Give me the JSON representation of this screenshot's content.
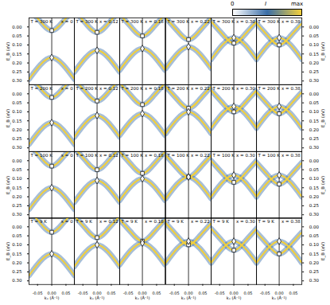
{
  "chart_data": {
    "type": "line",
    "xlabel": "kₓ (Å⁻¹)",
    "ylabel": "E_B (eV)",
    "xlim": [
      -0.08,
      0.08
    ],
    "xticks": [
      -0.05,
      {
        "value": 0,
        "label": "0.00"
      },
      0.05
    ],
    "ylim": [
      -0.05,
      0.32
    ],
    "yticks": [
      {
        "value": 0,
        "label": "0.00"
      },
      0.05,
      {
        "value": 0.1,
        "label": "0.10"
      },
      0.15,
      {
        "value": 0.2,
        "label": "0.20"
      },
      0.25,
      {
        "value": 0.3,
        "label": "0.30"
      }
    ],
    "color": "#f2cf3b",
    "vertical_line_k": 0,
    "colorbar": {
      "title": "I",
      "range_labels": [
        "0",
        "max"
      ],
      "colors": [
        "#ffffff",
        "#3a6ea8",
        "#f2cf3b"
      ]
    },
    "k": [
      -0.08,
      -0.04,
      0,
      0.04,
      0.08
    ],
    "panels": [
      [
        {
          "temperature_label": "T = 300 K",
          "composition_label": "x = 0",
          "bands": [
            [
              -0.1,
              -0.03,
              0.02,
              -0.03,
              -0.1
            ],
            [
              0.29,
              0.21,
              0.17,
              0.21,
              0.29
            ]
          ],
          "markers": [
            {
              "k": 0,
              "E": 0.02,
              "marker": "square"
            },
            {
              "k": 0,
              "E": 0.17,
              "marker": "diamond"
            }
          ]
        },
        {
          "temperature_label": "T = 300 K",
          "composition_label": "x = 0.12",
          "bands": [
            [
              -0.09,
              -0.02,
              0.03,
              -0.02,
              -0.09
            ],
            [
              0.25,
              0.17,
              0.13,
              0.17,
              0.25
            ]
          ],
          "markers": [
            {
              "k": 0,
              "E": 0.03,
              "marker": "square"
            },
            {
              "k": 0,
              "E": 0.13,
              "marker": "diamond"
            }
          ]
        },
        {
          "temperature_label": "T = 300 K",
          "composition_label": "x = 0.18",
          "bands": [
            [
              -0.07,
              0.0,
              0.05,
              0.0,
              -0.07
            ],
            [
              0.24,
              0.16,
              0.12,
              0.16,
              0.24
            ]
          ],
          "markers": [
            {
              "k": 0,
              "E": 0.05,
              "marker": "square"
            },
            {
              "k": 0,
              "E": 0.12,
              "marker": "diamond"
            }
          ]
        },
        {
          "temperature_label": "T = 300 K",
          "composition_label": "x = 0.22",
          "bands": [
            [
              -0.05,
              0.02,
              0.07,
              0.02,
              -0.05
            ],
            [
              0.23,
              0.15,
              0.11,
              0.15,
              0.23
            ]
          ],
          "markers": [
            {
              "k": 0,
              "E": 0.07,
              "marker": "square"
            },
            {
              "k": 0,
              "E": 0.11,
              "marker": "diamond"
            }
          ]
        },
        {
          "temperature_label": "T = 300 K",
          "composition_label": "x = 0.30",
          "bands": [
            [
              -0.03,
              0.04,
              0.09,
              0.04,
              -0.03
            ],
            [
              0.18,
              0.1,
              0.06,
              0.1,
              0.18
            ]
          ],
          "markers": [
            {
              "k": 0,
              "E": 0.09,
              "marker": "square"
            },
            {
              "k": 0,
              "E": 0.06,
              "marker": "diamond"
            }
          ]
        },
        {
          "temperature_label": "T = 300 K",
          "composition_label": "x = 0.38",
          "bands": [
            [
              -0.02,
              0.05,
              0.1,
              0.05,
              -0.02
            ],
            [
              0.18,
              0.1,
              0.06,
              0.1,
              0.18
            ]
          ],
          "markers": [
            {
              "k": 0,
              "E": 0.1,
              "marker": "square"
            },
            {
              "k": 0,
              "E": 0.06,
              "marker": "diamond"
            }
          ]
        }
      ],
      [
        {
          "temperature_label": "T = 200 K",
          "composition_label": "x = 0",
          "bands": [
            [
              -0.1,
              -0.03,
              0.02,
              -0.03,
              -0.1
            ],
            [
              0.28,
              0.2,
              0.16,
              0.2,
              0.28
            ]
          ],
          "markers": [
            {
              "k": 0,
              "E": 0.02,
              "marker": "square"
            },
            {
              "k": 0,
              "E": 0.16,
              "marker": "diamond"
            }
          ]
        },
        {
          "temperature_label": "T = 200 K",
          "composition_label": "x = 0.12",
          "bands": [
            [
              -0.08,
              -0.01,
              0.04,
              -0.01,
              -0.08
            ],
            [
              0.24,
              0.16,
              0.12,
              0.16,
              0.24
            ]
          ],
          "markers": [
            {
              "k": 0,
              "E": 0.04,
              "marker": "square"
            },
            {
              "k": 0,
              "E": 0.12,
              "marker": "diamond"
            }
          ]
        },
        {
          "temperature_label": "T = 200 K",
          "composition_label": "x = 0.18",
          "bands": [
            [
              -0.06,
              0.01,
              0.06,
              0.01,
              -0.06
            ],
            [
              0.23,
              0.15,
              0.11,
              0.15,
              0.23
            ]
          ],
          "markers": [
            {
              "k": 0,
              "E": 0.06,
              "marker": "square"
            },
            {
              "k": 0,
              "E": 0.11,
              "marker": "diamond"
            }
          ]
        },
        {
          "temperature_label": "T = 200 K",
          "composition_label": "x = 0.22",
          "bands": [
            [
              -0.04,
              0.03,
              0.08,
              0.03,
              -0.04
            ],
            [
              0.22,
              0.14,
              0.1,
              0.14,
              0.22
            ]
          ],
          "markers": [
            {
              "k": 0,
              "E": 0.08,
              "marker": "square"
            },
            {
              "k": 0,
              "E": 0.1,
              "marker": "diamond"
            }
          ]
        },
        {
          "temperature_label": "T = 200 K",
          "composition_label": "x = 0.30",
          "bands": [
            [
              -0.02,
              0.05,
              0.1,
              0.05,
              -0.02
            ],
            [
              0.19,
              0.11,
              0.07,
              0.11,
              0.19
            ]
          ],
          "markers": [
            {
              "k": 0,
              "E": 0.1,
              "marker": "square"
            },
            {
              "k": 0,
              "E": 0.07,
              "marker": "diamond"
            }
          ]
        },
        {
          "temperature_label": "T = 200 K",
          "composition_label": "x = 0.38",
          "bands": [
            [
              -0.01,
              0.06,
              0.11,
              0.06,
              -0.01
            ],
            [
              0.19,
              0.11,
              0.07,
              0.11,
              0.19
            ]
          ],
          "markers": [
            {
              "k": 0,
              "E": 0.11,
              "marker": "square"
            },
            {
              "k": 0,
              "E": 0.07,
              "marker": "diamond"
            }
          ]
        }
      ],
      [
        {
          "temperature_label": "T = 100 K",
          "composition_label": "x = 0",
          "bands": [
            [
              -0.09,
              -0.02,
              0.03,
              -0.02,
              -0.09
            ],
            [
              0.27,
              0.19,
              0.15,
              0.19,
              0.27
            ]
          ],
          "markers": [
            {
              "k": 0,
              "E": 0.03,
              "marker": "square"
            },
            {
              "k": 0,
              "E": 0.15,
              "marker": "diamond"
            }
          ]
        },
        {
          "temperature_label": "T = 100 K",
          "composition_label": "x = 0.12",
          "bands": [
            [
              -0.07,
              0.0,
              0.05,
              0.0,
              -0.07
            ],
            [
              0.23,
              0.15,
              0.11,
              0.15,
              0.23
            ]
          ],
          "markers": [
            {
              "k": 0,
              "E": 0.05,
              "marker": "square"
            },
            {
              "k": 0,
              "E": 0.11,
              "marker": "diamond"
            }
          ]
        },
        {
          "temperature_label": "T = 100 K",
          "composition_label": "x = 0.18",
          "bands": [
            [
              -0.05,
              0.02,
              0.07,
              0.02,
              -0.05
            ],
            [
              0.22,
              0.14,
              0.1,
              0.14,
              0.22
            ]
          ],
          "markers": [
            {
              "k": 0,
              "E": 0.07,
              "marker": "square"
            },
            {
              "k": 0,
              "E": 0.1,
              "marker": "diamond"
            }
          ]
        },
        {
          "temperature_label": "T = 100 K",
          "composition_label": "x = 0.22",
          "bands": [
            [
              -0.03,
              0.04,
              0.09,
              0.04,
              -0.03
            ],
            [
              0.21,
              0.13,
              0.09,
              0.13,
              0.21
            ]
          ],
          "markers": [
            {
              "k": 0,
              "E": 0.09,
              "marker": "square"
            },
            {
              "k": 0,
              "E": 0.09,
              "marker": "diamond"
            }
          ]
        },
        {
          "temperature_label": "T = 100 K",
          "composition_label": "x = 0.30",
          "bands": [
            [
              0.0,
              0.07,
              0.12,
              0.07,
              0.0
            ],
            [
              0.2,
              0.12,
              0.08,
              0.12,
              0.2
            ]
          ],
          "markers": [
            {
              "k": 0,
              "E": 0.12,
              "marker": "square"
            },
            {
              "k": 0,
              "E": 0.08,
              "marker": "diamond"
            }
          ]
        },
        {
          "temperature_label": "T = 100 K",
          "composition_label": "x = 0.38",
          "bands": [
            [
              0.01,
              0.08,
              0.13,
              0.08,
              0.01
            ],
            [
              0.2,
              0.12,
              0.08,
              0.12,
              0.2
            ]
          ],
          "markers": [
            {
              "k": 0,
              "E": 0.13,
              "marker": "square"
            },
            {
              "k": 0,
              "E": 0.08,
              "marker": "diamond"
            }
          ]
        }
      ],
      [
        {
          "temperature_label": "T = 9 K",
          "composition_label": "x = 0",
          "bands": [
            [
              -0.09,
              -0.02,
              0.03,
              -0.02,
              -0.09
            ],
            [
              0.27,
              0.19,
              0.15,
              0.19,
              0.27
            ]
          ],
          "markers": [
            {
              "k": 0,
              "E": 0.03,
              "marker": "square"
            },
            {
              "k": 0,
              "E": 0.15,
              "marker": "diamond"
            }
          ]
        },
        {
          "temperature_label": "T = 9 K",
          "composition_label": "x = 0.12",
          "bands": [
            [
              -0.06,
              0.01,
              0.06,
              0.01,
              -0.06
            ],
            [
              0.22,
              0.14,
              0.1,
              0.14,
              0.22
            ]
          ],
          "markers": [
            {
              "k": 0,
              "E": 0.06,
              "marker": "square"
            },
            {
              "k": 0,
              "E": 0.1,
              "marker": "diamond"
            }
          ]
        },
        {
          "temperature_label": "T = 9 K",
          "composition_label": "x = 0.18",
          "bands": [
            [
              -0.04,
              0.03,
              0.08,
              0.03,
              -0.04
            ],
            [
              0.21,
              0.13,
              0.09,
              0.13,
              0.21
            ]
          ],
          "markers": [
            {
              "k": 0,
              "E": 0.08,
              "marker": "square"
            },
            {
              "k": 0,
              "E": 0.09,
              "marker": "diamond"
            }
          ]
        },
        {
          "temperature_label": "T = 9 K",
          "composition_label": "x = 0.22",
          "bands": [
            [
              -0.02,
              0.05,
              0.1,
              0.05,
              -0.02
            ],
            [
              0.2,
              0.12,
              0.08,
              0.12,
              0.2
            ]
          ],
          "markers": [
            {
              "k": 0,
              "E": 0.1,
              "marker": "square"
            },
            {
              "k": 0,
              "E": 0.08,
              "marker": "diamond"
            }
          ]
        },
        {
          "temperature_label": "T = 9 K",
          "composition_label": "x = 0.30",
          "bands": [
            [
              0.01,
              0.08,
              0.13,
              0.08,
              0.01
            ],
            [
              0.2,
              0.12,
              0.08,
              0.12,
              0.2
            ]
          ],
          "markers": [
            {
              "k": 0,
              "E": 0.13,
              "marker": "square"
            },
            {
              "k": 0,
              "E": 0.08,
              "marker": "diamond"
            }
          ]
        },
        {
          "temperature_label": "T = 9 K",
          "composition_label": "x = 0.38",
          "bands": [
            [
              0.03,
              0.1,
              0.15,
              0.1,
              0.03
            ],
            [
              0.2,
              0.12,
              0.08,
              0.12,
              0.2
            ]
          ],
          "markers": [
            {
              "k": 0,
              "E": 0.15,
              "marker": "square"
            },
            {
              "k": 0,
              "E": 0.08,
              "marker": "diamond"
            }
          ]
        }
      ]
    ]
  }
}
